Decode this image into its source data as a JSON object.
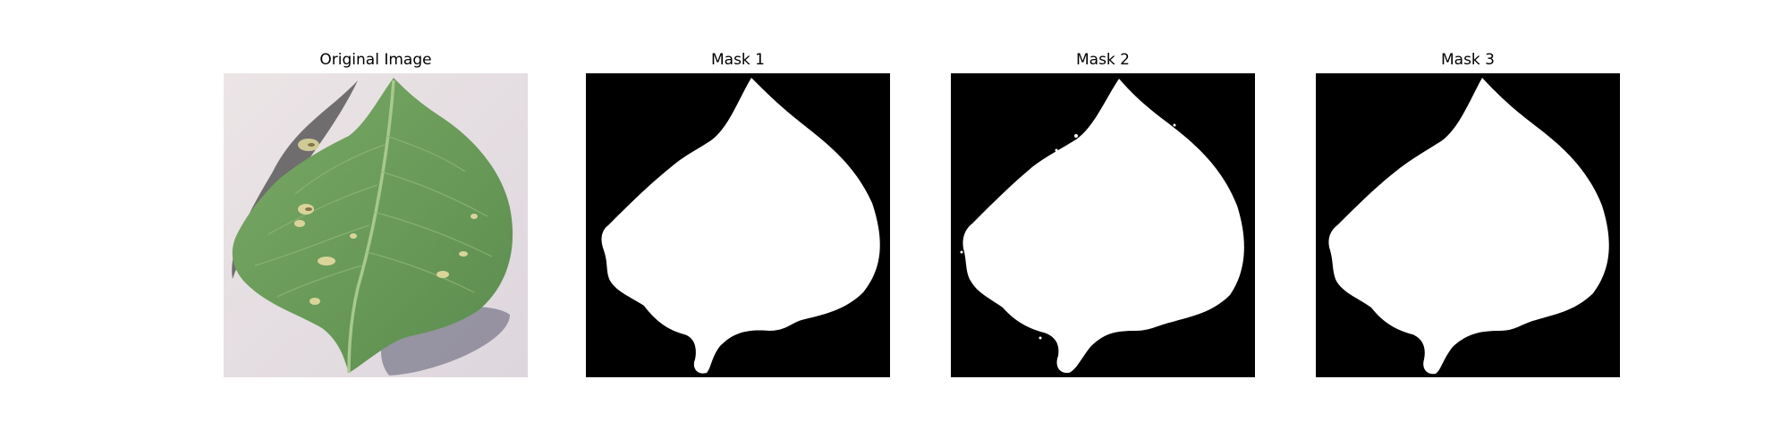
{
  "figure": {
    "panels": [
      {
        "title": "Original Image",
        "kind": "photo"
      },
      {
        "title": "Mask 1",
        "kind": "mask"
      },
      {
        "title": "Mask 2",
        "kind": "mask"
      },
      {
        "title": "Mask 3",
        "kind": "mask"
      }
    ],
    "colors": {
      "mask_background": "#000000",
      "mask_foreground": "#ffffff",
      "photo_background": "#e7e0e2",
      "leaf_green": "#6f9e5d",
      "leaf_dark": "#4e7a40",
      "leaf_spot": "#d8d39a",
      "shadow": "#4a4a5c"
    }
  }
}
